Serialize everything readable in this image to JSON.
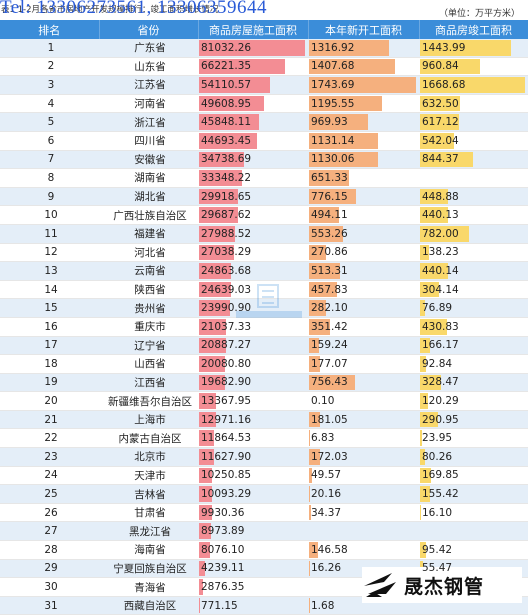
{
  "caption": "表1  1-2月各省市房地产开发规模排行：竣工面积增长情况",
  "phone": "Tel: 13306273561, 13306359644",
  "unit": "（单位：万平方米）",
  "headers": [
    "排名",
    "省份",
    "商品房屋施工面积",
    "本年新开工面积",
    "商品房竣工面积"
  ],
  "bar_max": {
    "construction": 81032.26,
    "new_start": 1743.69,
    "completed": 1668.68
  },
  "rows": [
    {
      "rank": "1",
      "province": "广东省",
      "construction": "81032.26",
      "new_start": "1316.92",
      "completed": "1443.99"
    },
    {
      "rank": "2",
      "province": "山东省",
      "construction": "66221.35",
      "new_start": "1407.68",
      "completed": "960.84"
    },
    {
      "rank": "3",
      "province": "江苏省",
      "construction": "54110.57",
      "new_start": "1743.69",
      "completed": "1668.68"
    },
    {
      "rank": "4",
      "province": "河南省",
      "construction": "49608.95",
      "new_start": "1195.55",
      "completed": "632.50"
    },
    {
      "rank": "5",
      "province": "浙江省",
      "construction": "45848.11",
      "new_start": "969.93",
      "completed": "617.12"
    },
    {
      "rank": "6",
      "province": "四川省",
      "construction": "44693.45",
      "new_start": "1131.14",
      "completed": "542.04"
    },
    {
      "rank": "7",
      "province": "安徽省",
      "construction": "34738.69",
      "new_start": "1130.06",
      "completed": "844.37"
    },
    {
      "rank": "8",
      "province": "湖南省",
      "construction": "33348.22",
      "new_start": "651.33",
      "completed": ""
    },
    {
      "rank": "9",
      "province": "湖北省",
      "construction": "29918.65",
      "new_start": "776.15",
      "completed": "448.88"
    },
    {
      "rank": "10",
      "province": "广西壮族自治区",
      "construction": "29687.62",
      "new_start": "494.11",
      "completed": "440.13"
    },
    {
      "rank": "11",
      "province": "福建省",
      "construction": "27988.52",
      "new_start": "553.26",
      "completed": "782.00"
    },
    {
      "rank": "12",
      "province": "河北省",
      "construction": "27038.29",
      "new_start": "270.86",
      "completed": "138.23"
    },
    {
      "rank": "13",
      "province": "云南省",
      "construction": "24863.68",
      "new_start": "513.31",
      "completed": "440.14"
    },
    {
      "rank": "14",
      "province": "陕西省",
      "construction": "24639.03",
      "new_start": "457.83",
      "completed": "304.14"
    },
    {
      "rank": "15",
      "province": "贵州省",
      "construction": "23990.90",
      "new_start": "282.10",
      "completed": "76.89"
    },
    {
      "rank": "16",
      "province": "重庆市",
      "construction": "21037.33",
      "new_start": "351.42",
      "completed": "430.83"
    },
    {
      "rank": "17",
      "province": "辽宁省",
      "construction": "20887.27",
      "new_start": "159.24",
      "completed": "166.17"
    },
    {
      "rank": "18",
      "province": "山西省",
      "construction": "20080.80",
      "new_start": "177.07",
      "completed": "92.84"
    },
    {
      "rank": "19",
      "province": "江西省",
      "construction": "19682.90",
      "new_start": "756.43",
      "completed": "328.47"
    },
    {
      "rank": "20",
      "province": "新疆维吾尔自治区",
      "construction": "13367.95",
      "new_start": "0.10",
      "completed": "120.29"
    },
    {
      "rank": "21",
      "province": "上海市",
      "construction": "12971.16",
      "new_start": "181.05",
      "completed": "290.95"
    },
    {
      "rank": "22",
      "province": "内蒙古自治区",
      "construction": "11864.53",
      "new_start": "6.83",
      "completed": "23.95"
    },
    {
      "rank": "23",
      "province": "北京市",
      "construction": "11627.90",
      "new_start": "172.03",
      "completed": "80.26"
    },
    {
      "rank": "24",
      "province": "天津市",
      "construction": "10250.85",
      "new_start": "49.57",
      "completed": "169.85"
    },
    {
      "rank": "25",
      "province": "吉林省",
      "construction": "10093.29",
      "new_start": "20.16",
      "completed": "155.42"
    },
    {
      "rank": "26",
      "province": "甘肃省",
      "construction": "9930.36",
      "new_start": "34.37",
      "completed": "16.10"
    },
    {
      "rank": "27",
      "province": "黑龙江省",
      "construction": "8973.89",
      "new_start": "",
      "completed": ""
    },
    {
      "rank": "28",
      "province": "海南省",
      "construction": "8076.10",
      "new_start": "146.58",
      "completed": "95.42"
    },
    {
      "rank": "29",
      "province": "宁夏回族自治区",
      "construction": "4239.11",
      "new_start": "16.26",
      "completed": "55.47"
    },
    {
      "rank": "30",
      "province": "青海省",
      "construction": "2876.35",
      "new_start": "",
      "completed": ""
    },
    {
      "rank": "31",
      "province": "西藏自治区",
      "construction": "771.15",
      "new_start": "1.68",
      "completed": ""
    }
  ],
  "logo": {
    "text": "晟杰钢管",
    "mark_color": "#111111"
  },
  "colors": {
    "header": "#3b8dd9",
    "bar_construction": "#f38d94",
    "bar_new_start": "#f5b07e",
    "bar_completed": "#f9d86a",
    "phone": "#2a5bd7"
  }
}
